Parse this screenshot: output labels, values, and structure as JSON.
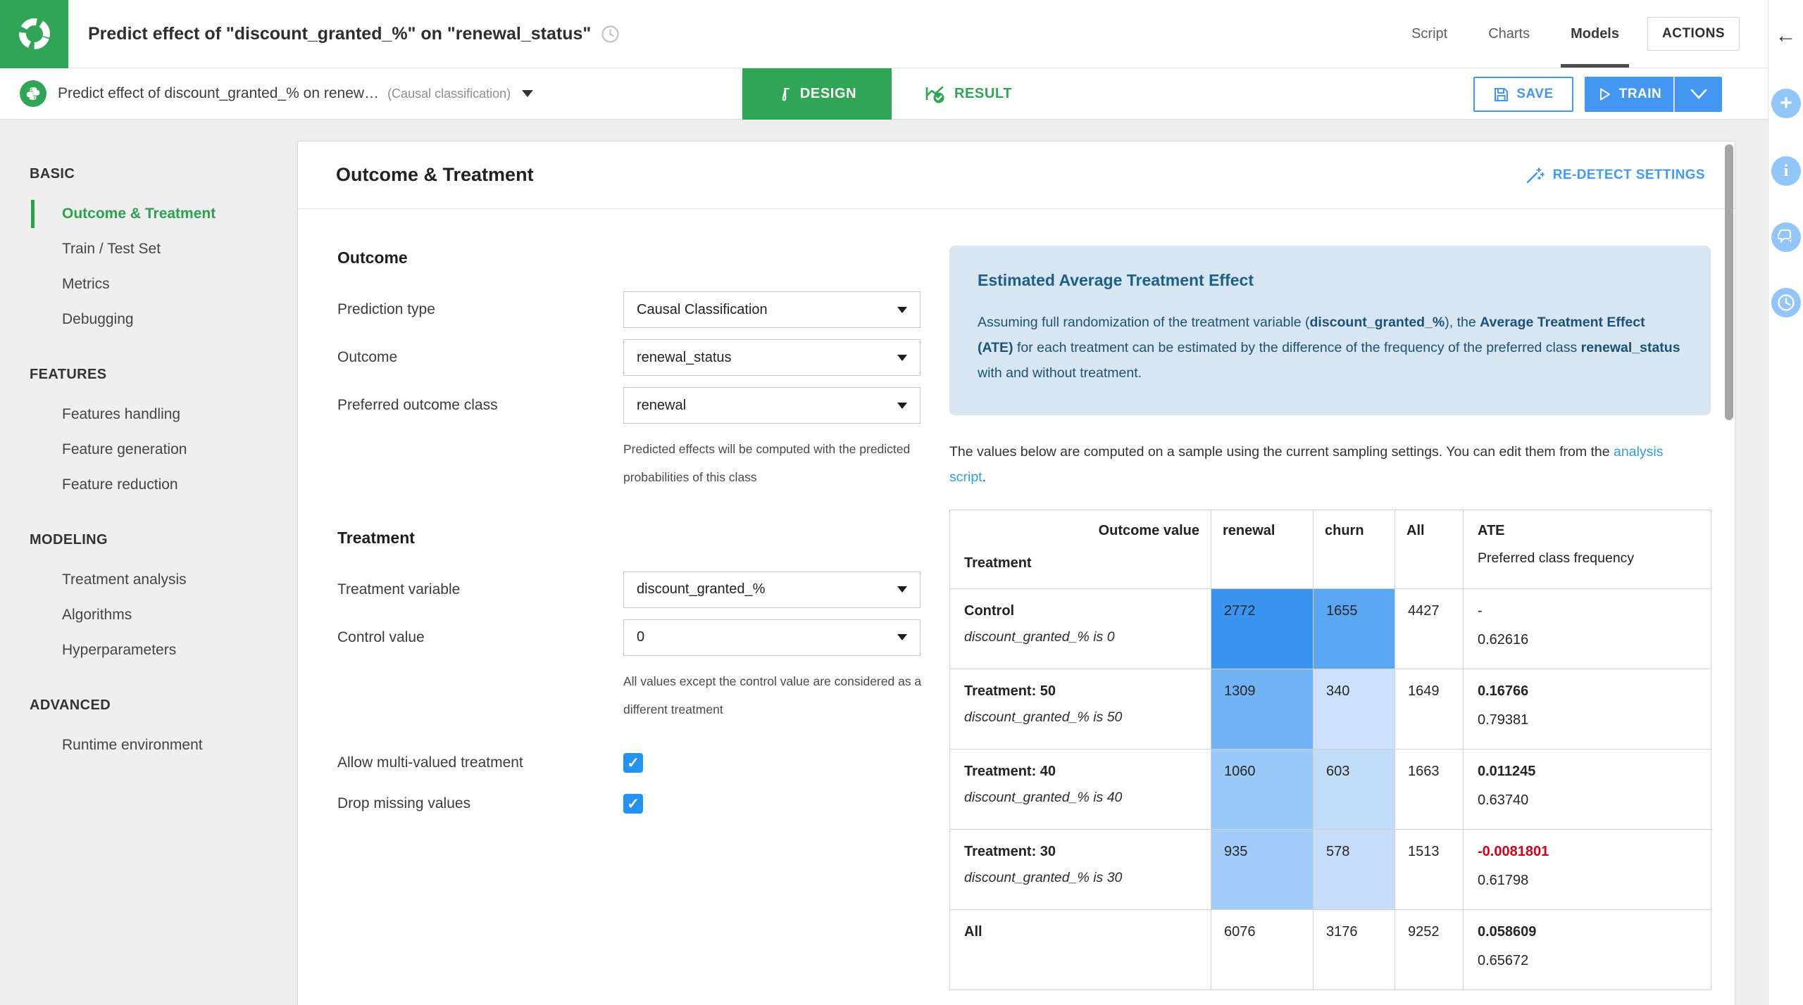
{
  "colors": {
    "green": "#31a556",
    "blue": "#4496f3",
    "link_blue": "#2e9fdb",
    "negative_red": "#d0021b",
    "info_bg": "#d7e6f0",
    "info_text": "#1a527b"
  },
  "header": {
    "title": "Predict effect of \"discount_granted_%\" on \"renewal_status\"",
    "tabs": [
      {
        "label": "Script",
        "active": false
      },
      {
        "label": "Charts",
        "active": false
      },
      {
        "label": "Models",
        "active": true
      }
    ],
    "actions_label": "ACTIONS"
  },
  "toolbar": {
    "model_name": "Predict effect of discount_granted_% on renew…",
    "model_type": "(Causal classification)",
    "design_label": "DESIGN",
    "result_label": "RESULT",
    "save_label": "SAVE",
    "train_label": "TRAIN"
  },
  "sidebar": {
    "sections": [
      {
        "header": "BASIC",
        "items": [
          {
            "label": "Outcome & Treatment",
            "active": true
          },
          {
            "label": "Train / Test Set",
            "active": false
          },
          {
            "label": "Metrics",
            "active": false
          },
          {
            "label": "Debugging",
            "active": false
          }
        ]
      },
      {
        "header": "FEATURES",
        "items": [
          {
            "label": "Features handling",
            "active": false
          },
          {
            "label": "Feature generation",
            "active": false
          },
          {
            "label": "Feature reduction",
            "active": false
          }
        ]
      },
      {
        "header": "MODELING",
        "items": [
          {
            "label": "Treatment analysis",
            "active": false
          },
          {
            "label": "Algorithms",
            "active": false
          },
          {
            "label": "Hyperparameters",
            "active": false
          }
        ]
      },
      {
        "header": "ADVANCED",
        "items": [
          {
            "label": "Runtime environment",
            "active": false
          }
        ]
      }
    ]
  },
  "panel": {
    "title": "Outcome & Treatment",
    "redetect_label": "RE-DETECT SETTINGS",
    "outcome": {
      "heading": "Outcome",
      "fields": [
        {
          "label": "Prediction type",
          "value": "Causal Classification"
        },
        {
          "label": "Outcome",
          "value": "renewal_status"
        },
        {
          "label": "Preferred outcome class",
          "value": "renewal",
          "help": "Predicted effects will be computed with the predicted probabilities of this class"
        }
      ]
    },
    "treatment": {
      "heading": "Treatment",
      "fields": [
        {
          "label": "Treatment variable",
          "value": "discount_granted_%"
        },
        {
          "label": "Control value",
          "value": "0",
          "help": "All values except the control value are considered as a different treatment"
        }
      ],
      "checkboxes": [
        {
          "label": "Allow multi-valued treatment",
          "checked": true
        },
        {
          "label": "Drop missing values",
          "checked": true
        }
      ]
    },
    "ate_info": {
      "title": "Estimated Average Treatment Effect",
      "body_segments": [
        {
          "text": "Assuming full randomization of the treatment variable ("
        },
        {
          "text": "discount_granted_%",
          "bold": true
        },
        {
          "text": "), the "
        },
        {
          "text": "Average Treatment Effect (ATE)",
          "bold": true
        },
        {
          "text": " for each treatment can be estimated by the difference of the frequency of the preferred class "
        },
        {
          "text": "renewal_status",
          "bold": true
        },
        {
          "text": " with and without treatment."
        }
      ]
    },
    "note_segments": [
      {
        "text": "The values below are computed on a sample using the current sampling settings. You can edit them from the "
      },
      {
        "text": "analysis script",
        "link": true
      },
      {
        "text": "."
      }
    ],
    "table": {
      "header": {
        "corner_top": "Outcome value",
        "corner_bottom": "Treatment",
        "col_renewal": "renewal",
        "col_churn": "churn",
        "col_all": "All",
        "ate_title": "ATE",
        "ate_subtitle": "Preferred class frequency"
      },
      "rows": [
        {
          "treatment": "Control",
          "condition": "discount_granted_% is 0",
          "renewal": "2772",
          "renewal_bg": "#3a95f2",
          "churn": "1655",
          "churn_bg": "#5aa8f4",
          "all": "4427",
          "ate": "-",
          "ate_bold": false,
          "ate_color": "",
          "freq": "0.62616"
        },
        {
          "treatment": "Treatment: 50",
          "condition": "discount_granted_% is 50",
          "renewal": "1309",
          "renewal_bg": "#72b3f6",
          "churn": "340",
          "churn_bg": "#cce1fb",
          "all": "1649",
          "ate": "0.16766",
          "ate_bold": true,
          "ate_color": "",
          "freq": "0.79381"
        },
        {
          "treatment": "Treatment: 40",
          "condition": "discount_granted_% is 40",
          "renewal": "1060",
          "renewal_bg": "#99c9f8",
          "churn": "603",
          "churn_bg": "#c0dcfa",
          "all": "1663",
          "ate": "0.011245",
          "ate_bold": true,
          "ate_color": "",
          "freq": "0.63740"
        },
        {
          "treatment": "Treatment: 30",
          "condition": "discount_granted_% is 30",
          "renewal": "935",
          "renewal_bg": "#a3cdf9",
          "churn": "578",
          "churn_bg": "#c6defa",
          "all": "1513",
          "ate": "-0.0081801",
          "ate_bold": true,
          "ate_color": "#d0021b",
          "freq": "0.61798"
        },
        {
          "treatment": "All",
          "condition": "",
          "renewal": "6076",
          "renewal_bg": "",
          "churn": "3176",
          "churn_bg": "",
          "all": "9252",
          "ate": "0.058609",
          "ate_bold": true,
          "ate_color": "",
          "freq": "0.65672"
        }
      ]
    }
  },
  "rail": {
    "icons": [
      "collapse-panel",
      "plus",
      "info",
      "discussions",
      "history"
    ]
  }
}
